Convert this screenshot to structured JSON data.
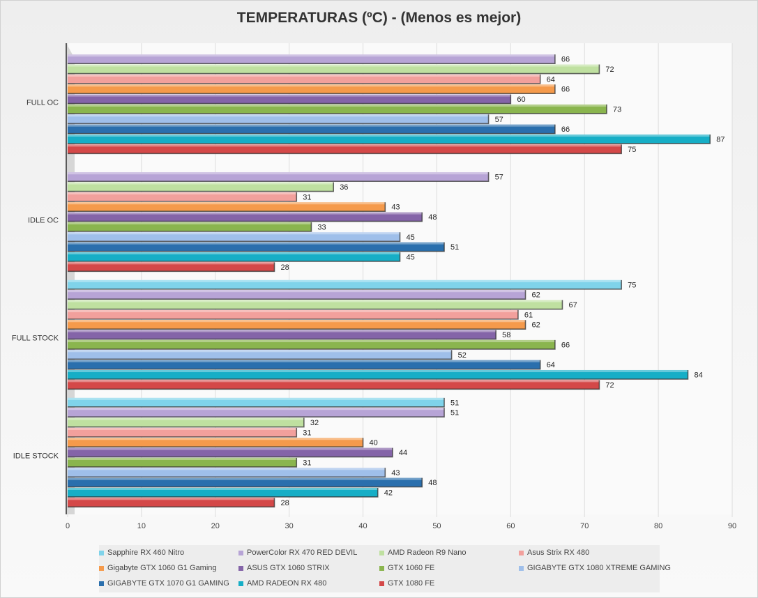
{
  "chart_data": {
    "type": "bar",
    "orientation": "horizontal",
    "title": "TEMPERATURAS (ºC) - (Menos es mejor)",
    "xlim": [
      0,
      90
    ],
    "xticks": [
      0,
      10,
      20,
      30,
      40,
      50,
      60,
      70,
      80,
      90
    ],
    "grid": true,
    "legend_position": "bottom",
    "categories": [
      "FULL OC",
      "IDLE OC",
      "FULL STOCK",
      "IDLE STOCK"
    ],
    "series": [
      {
        "name": "Sapphire RX 460 Nitro",
        "color": "#7fd3ea",
        "values": [
          null,
          null,
          75,
          51
        ]
      },
      {
        "name": "PowerColor RX 470 RED DEVIL",
        "color": "#b7a4d6",
        "values": [
          66,
          57,
          62,
          51
        ]
      },
      {
        "name": "AMD Radeon R9 Nano",
        "color": "#bfe0a0",
        "values": [
          72,
          36,
          67,
          32
        ]
      },
      {
        "name": "Asus Strix RX 480",
        "color": "#f2a09c",
        "values": [
          64,
          31,
          61,
          31
        ]
      },
      {
        "name": "Gigabyte GTX 1060 G1 Gaming",
        "color": "#f59a4b",
        "values": [
          66,
          43,
          62,
          40
        ]
      },
      {
        "name": "ASUS GTX 1060 STRIX",
        "color": "#8464a8",
        "values": [
          60,
          48,
          58,
          44
        ]
      },
      {
        "name": "GTX 1060 FE",
        "color": "#8ab54e",
        "values": [
          73,
          33,
          66,
          31
        ]
      },
      {
        "name": "GIGABYTE GTX 1080 XTREME GAMING",
        "color": "#9fbfea",
        "values": [
          57,
          45,
          52,
          43
        ]
      },
      {
        "name": "GIGABYTE GTX 1070 G1 GAMING",
        "color": "#2a6fad",
        "values": [
          66,
          51,
          64,
          48
        ]
      },
      {
        "name": "AMD RADEON RX 480",
        "color": "#16aec6",
        "values": [
          87,
          45,
          84,
          42
        ]
      },
      {
        "name": "GTX 1080 FE",
        "color": "#d44848",
        "values": [
          75,
          28,
          72,
          28
        ]
      }
    ]
  }
}
